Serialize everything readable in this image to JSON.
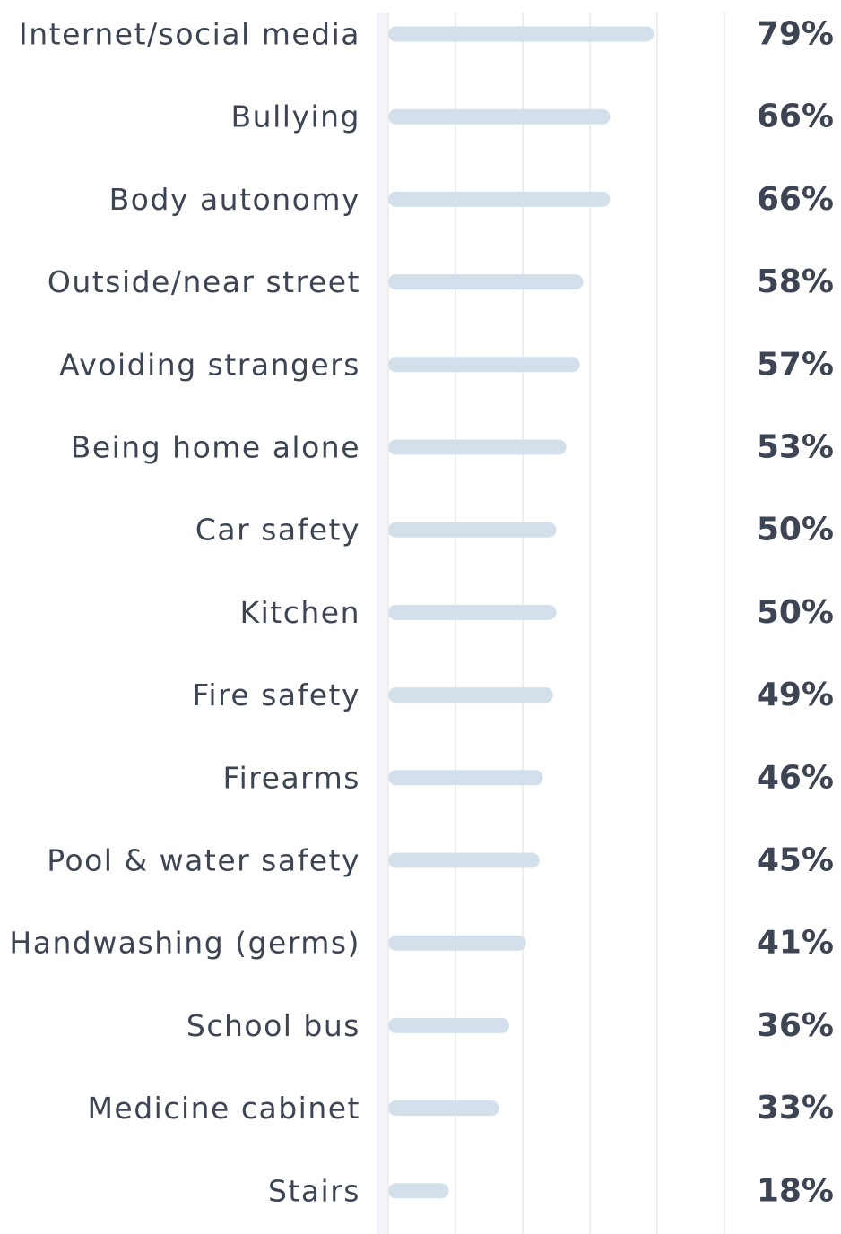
{
  "chart_data": {
    "type": "bar",
    "orientation": "horizontal",
    "categories": [
      "Internet/social media",
      "Bullying",
      "Body autonomy",
      "Outside/near street",
      "Avoiding strangers",
      "Being home alone",
      "Car safety",
      "Kitchen",
      "Fire safety",
      "Firearms",
      "Pool & water safety",
      "Handwashing (germs)",
      "School bus",
      "Medicine cabinet",
      "Stairs"
    ],
    "values": [
      79,
      66,
      66,
      58,
      57,
      53,
      50,
      50,
      49,
      46,
      45,
      41,
      36,
      33,
      18
    ],
    "value_labels": [
      "79%",
      "66%",
      "66%",
      "58%",
      "57%",
      "53%",
      "50%",
      "50%",
      "49%",
      "46%",
      "45%",
      "41%",
      "36%",
      "33%",
      "18%"
    ],
    "xlim": [
      0,
      100
    ],
    "grid": true,
    "legend": "none",
    "colors": {
      "bar": "#d3e0ec",
      "text": "#3d4454",
      "grid": "#eeeeee",
      "axis_band": "#f3f5fa"
    }
  }
}
